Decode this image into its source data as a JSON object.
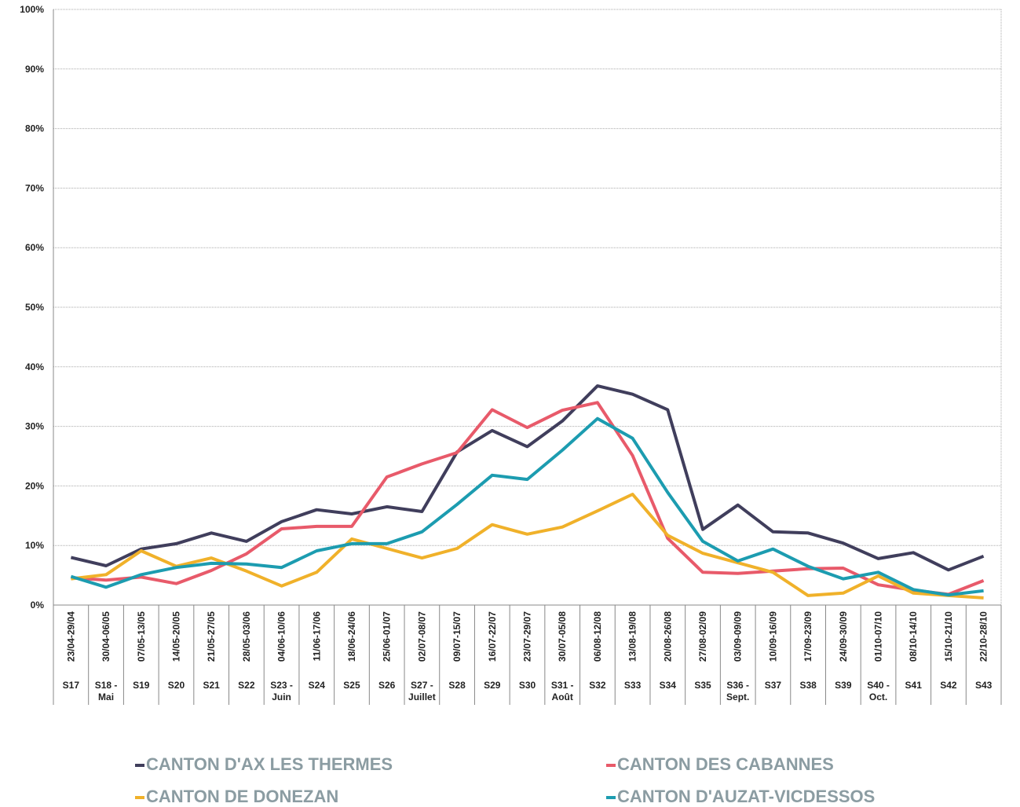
{
  "chart_data": {
    "type": "line",
    "categories": [
      "23/04-29/04",
      "30/04-06/05",
      "07/05-13/05",
      "14/05-20/05",
      "21/05-27/05",
      "28/05-03/06",
      "04/06-10/06",
      "11/06-17/06",
      "18/06-24/06",
      "25/06-01/07",
      "02/07-08/07",
      "09/07-15/07",
      "16/07-22/07",
      "23/07-29/07",
      "30/07-05/08",
      "06/08-12/08",
      "13/08-19/08",
      "20/08-26/08",
      "27/08-02/09",
      "03/09-09/09",
      "10/09-16/09",
      "17/09-23/09",
      "24/09-30/09",
      "01/10-07/10",
      "08/10-14/10",
      "15/10-21/10",
      "22/10-28/10"
    ],
    "week_labels": [
      "S17",
      "S18 - Mai",
      "S19",
      "S20",
      "S21",
      "S22",
      "S23 - Juin",
      "S24",
      "S25",
      "S26",
      "S27 - Juillet",
      "S28",
      "S29",
      "S30",
      "S31 - Août",
      "S32",
      "S33",
      "S34",
      "S35",
      "S36 - Sept.",
      "S37",
      "S38",
      "S39",
      "S40 - Oct.",
      "S41",
      "S42",
      "S43"
    ],
    "series": [
      {
        "name": "CANTON D'AX LES THERMES",
        "color": "#403e5c",
        "values": [
          8.0,
          6.6,
          9.4,
          10.3,
          12.1,
          10.7,
          14.0,
          16.0,
          15.3,
          16.5,
          15.7,
          25.7,
          29.3,
          26.6,
          30.9,
          36.8,
          35.4,
          32.8,
          12.7,
          16.8,
          12.3,
          12.1,
          10.4,
          7.8,
          8.8,
          5.9,
          8.2
        ]
      },
      {
        "name": "CANTON DES CABANNES",
        "color": "#e85a6a",
        "values": [
          4.6,
          4.2,
          4.7,
          3.6,
          5.8,
          8.6,
          12.8,
          13.2,
          13.2,
          21.5,
          23.7,
          25.6,
          32.8,
          29.8,
          32.7,
          34.0,
          25.1,
          11.2,
          5.5,
          5.3,
          5.7,
          6.1,
          6.2,
          3.4,
          2.5,
          1.8,
          4.1
        ]
      },
      {
        "name": "CANTON DE DONEZAN",
        "color": "#f0b12a",
        "values": [
          4.4,
          5.1,
          9.1,
          6.5,
          7.9,
          5.7,
          3.2,
          5.5,
          11.1,
          9.5,
          7.9,
          9.5,
          13.5,
          11.9,
          13.1,
          15.8,
          18.6,
          11.7,
          8.7,
          7.1,
          5.5,
          1.6,
          2.0,
          4.9,
          2.0,
          1.6,
          1.2
        ]
      },
      {
        "name": "CANTON D'AUZAT-VICDESSOS",
        "color": "#1c9cb0",
        "values": [
          4.8,
          3.0,
          5.1,
          6.3,
          7.0,
          6.9,
          6.3,
          9.1,
          10.3,
          10.3,
          12.3,
          16.9,
          21.8,
          21.1,
          26.0,
          31.3,
          28.0,
          18.9,
          10.7,
          7.4,
          9.4,
          6.5,
          4.4,
          5.5,
          2.6,
          1.7,
          2.4
        ]
      }
    ],
    "ylim": [
      0,
      100
    ],
    "yticks": [
      {
        "value": 0,
        "label": "0%"
      },
      {
        "value": 10,
        "label": "10%"
      },
      {
        "value": 20,
        "label": "20%"
      },
      {
        "value": 30,
        "label": "30%"
      },
      {
        "value": 40,
        "label": "40%"
      },
      {
        "value": 50,
        "label": "50%"
      },
      {
        "value": 60,
        "label": "60%"
      },
      {
        "value": 70,
        "label": "70%"
      },
      {
        "value": 80,
        "label": "80%"
      },
      {
        "value": 90,
        "label": "90%"
      },
      {
        "value": 100,
        "label": "100%"
      }
    ],
    "grid": true
  }
}
